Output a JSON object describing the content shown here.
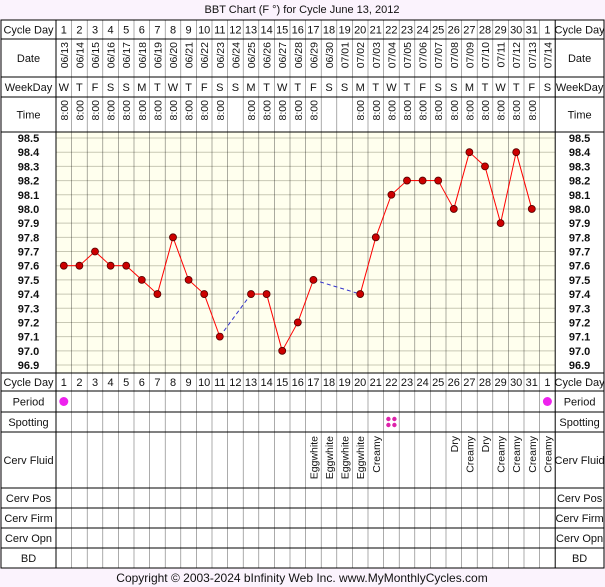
{
  "chart_data": {
    "type": "line",
    "title": "BBT Chart (F °) for Cycle June 13, 2012",
    "row_labels": {
      "cycle_day": "Cycle Day",
      "date": "Date",
      "weekday": "WeekDay",
      "time": "Time",
      "period": "Period",
      "spotting": "Spotting",
      "cerv_fluid": "Cerv Fluid",
      "cerv_pos": "Cerv Pos",
      "cerv_firm": "Cerv Firm",
      "cerv_opn": "Cerv Opn",
      "bd": "BD"
    },
    "cycle_days": [
      "1",
      "2",
      "3",
      "4",
      "5",
      "6",
      "7",
      "8",
      "9",
      "10",
      "11",
      "12",
      "13",
      "14",
      "15",
      "16",
      "17",
      "18",
      "19",
      "20",
      "21",
      "22",
      "23",
      "24",
      "25",
      "26",
      "27",
      "28",
      "29",
      "30",
      "31",
      "1"
    ],
    "dates": [
      "06/13",
      "06/14",
      "06/15",
      "06/16",
      "06/17",
      "06/18",
      "06/19",
      "06/20",
      "06/21",
      "06/22",
      "06/23",
      "06/24",
      "06/25",
      "06/26",
      "06/27",
      "06/28",
      "06/29",
      "06/30",
      "07/01",
      "07/02",
      "07/03",
      "07/04",
      "07/05",
      "07/06",
      "07/07",
      "07/08",
      "07/09",
      "07/10",
      "07/11",
      "07/12",
      "07/13",
      "07/14"
    ],
    "weekdays": [
      "W",
      "T",
      "F",
      "S",
      "S",
      "M",
      "T",
      "W",
      "T",
      "F",
      "S",
      "S",
      "M",
      "T",
      "W",
      "T",
      "F",
      "S",
      "S",
      "M",
      "T",
      "W",
      "T",
      "F",
      "S",
      "S",
      "M",
      "T",
      "W",
      "T",
      "F",
      "S"
    ],
    "times": [
      "8:00",
      "8:00",
      "8:00",
      "8:00",
      "8:00",
      "8:00",
      "8:00",
      "8:00",
      "8:00",
      "8:00",
      "8:00",
      "",
      "8:00",
      "8:00",
      "8:00",
      "8:00",
      "8:00",
      "",
      "",
      "8:00",
      "8:00",
      "8:00",
      "8:00",
      "8:00",
      "8:00",
      "8:00",
      "8:00",
      "8:00",
      "8:00",
      "8:00",
      "8:00",
      ""
    ],
    "y_ticks": [
      "98.5",
      "98.4",
      "98.3",
      "98.2",
      "98.1",
      "98.0",
      "97.9",
      "97.8",
      "97.7",
      "97.6",
      "97.5",
      "97.4",
      "97.3",
      "97.2",
      "97.1",
      "97.0",
      "96.9"
    ],
    "ylim": [
      96.9,
      98.5
    ],
    "temperatures": [
      97.6,
      97.6,
      97.7,
      97.6,
      97.6,
      97.5,
      97.4,
      97.8,
      97.5,
      97.4,
      97.1,
      null,
      97.4,
      97.4,
      97.0,
      97.2,
      97.5,
      null,
      null,
      97.4,
      97.8,
      98.1,
      98.2,
      98.2,
      98.2,
      98.0,
      98.4,
      98.3,
      97.9,
      98.4,
      98.0,
      null
    ],
    "period": [
      true,
      false,
      false,
      false,
      false,
      false,
      false,
      false,
      false,
      false,
      false,
      false,
      false,
      false,
      false,
      false,
      false,
      false,
      false,
      false,
      false,
      false,
      false,
      false,
      false,
      false,
      false,
      false,
      false,
      false,
      false,
      true
    ],
    "spotting": [
      false,
      false,
      false,
      false,
      false,
      false,
      false,
      false,
      false,
      false,
      false,
      false,
      false,
      false,
      false,
      false,
      false,
      false,
      false,
      false,
      false,
      true,
      false,
      false,
      false,
      false,
      false,
      false,
      false,
      false,
      false,
      false
    ],
    "cerv_fluid": [
      "",
      "",
      "",
      "",
      "",
      "",
      "",
      "",
      "",
      "",
      "",
      "",
      "",
      "",
      "",
      "",
      "Eggwhite",
      "Eggwhite",
      "Eggwhite",
      "Eggwhite",
      "Creamy",
      "",
      "",
      "",
      "",
      "Dry",
      "Creamy",
      "Dry",
      "Creamy",
      "Creamy",
      "Creamy",
      "Creamy"
    ],
    "footer": "Copyright © 2003-2024 bInfinity Web Inc.    www.MyMonthlyCycles.com",
    "colors": {
      "background": "#fbf3fd",
      "plot_bg": "#ffffee",
      "grid": "#c8c8b4",
      "border": "#000000",
      "line": "#ff0000",
      "marker": "#cc0000",
      "gap_line": "#3333cc",
      "period": "#ee22ee",
      "spotting": "#dd22aa"
    }
  }
}
